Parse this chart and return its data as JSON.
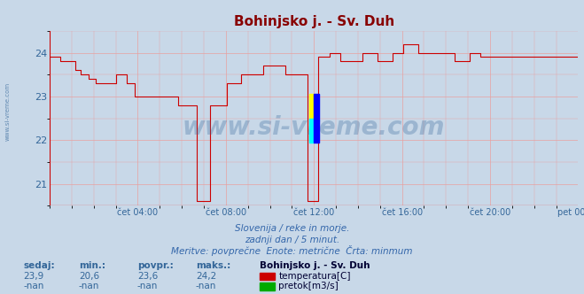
{
  "title": "Bohinjsko j. - Sv. Duh",
  "title_color": "#880000",
  "background_color": "#c8d8e8",
  "plot_bg_color": "#c8d8e8",
  "grid_color": "#e8a0a0",
  "line_color": "#cc0000",
  "ylim": [
    20.5,
    24.5
  ],
  "yticks": [
    21,
    22,
    23,
    24
  ],
  "tick_color": "#336699",
  "subtitle_lines": [
    "Slovenija / reke in morje.",
    "zadnji dan / 5 minut.",
    "Meritve: povprečne  Enote: metrične  Črta: minmum"
  ],
  "footer_labels": [
    "sedaj:",
    "min.:",
    "povpr.:",
    "maks.:"
  ],
  "footer_values_row1": [
    "23,9",
    "20,6",
    "23,6",
    "24,2"
  ],
  "footer_values_row2": [
    "-nan",
    "-nan",
    "-nan",
    "-nan"
  ],
  "legend_title": "Bohinjsko j. - Sv. Duh",
  "legend_items": [
    {
      "label": "temperatura[C]",
      "color": "#cc0000"
    },
    {
      "label": "pretok[m3/s]",
      "color": "#00aa00"
    }
  ],
  "watermark": "www.si-vreme.com",
  "watermark_color": "#336699",
  "watermark_alpha": 0.3,
  "xtick_labels": [
    "čet 04:00",
    "čet 08:00",
    "čet 12:00",
    "čet 16:00",
    "čet 20:00",
    "pet 00:00"
  ],
  "temp_data": [
    23.9,
    23.9,
    23.9,
    23.9,
    23.9,
    23.9,
    23.8,
    23.8,
    23.8,
    23.8,
    23.8,
    23.8,
    23.8,
    23.8,
    23.6,
    23.6,
    23.6,
    23.5,
    23.5,
    23.5,
    23.5,
    23.4,
    23.4,
    23.4,
    23.4,
    23.3,
    23.3,
    23.3,
    23.3,
    23.3,
    23.3,
    23.3,
    23.3,
    23.3,
    23.3,
    23.3,
    23.5,
    23.5,
    23.5,
    23.5,
    23.5,
    23.5,
    23.3,
    23.3,
    23.3,
    23.3,
    23.0,
    23.0,
    23.0,
    23.0,
    23.0,
    23.0,
    23.0,
    23.0,
    23.0,
    23.0,
    23.0,
    23.0,
    23.0,
    23.0,
    23.0,
    23.0,
    23.0,
    23.0,
    23.0,
    23.0,
    23.0,
    23.0,
    23.0,
    23.0,
    22.8,
    22.8,
    22.8,
    22.8,
    22.8,
    22.8,
    22.8,
    22.8,
    22.8,
    22.8,
    20.6,
    20.6,
    20.6,
    20.6,
    20.6,
    20.6,
    20.6,
    22.8,
    22.8,
    22.8,
    22.8,
    22.8,
    22.8,
    22.8,
    22.8,
    22.8,
    23.3,
    23.3,
    23.3,
    23.3,
    23.3,
    23.3,
    23.3,
    23.3,
    23.5,
    23.5,
    23.5,
    23.5,
    23.5,
    23.5,
    23.5,
    23.5,
    23.5,
    23.5,
    23.5,
    23.5,
    23.7,
    23.7,
    23.7,
    23.7,
    23.7,
    23.7,
    23.7,
    23.7,
    23.7,
    23.7,
    23.7,
    23.7,
    23.5,
    23.5,
    23.5,
    23.5,
    23.5,
    23.5,
    23.5,
    23.5,
    23.5,
    23.5,
    23.5,
    23.5,
    20.6,
    20.6,
    20.6,
    20.6,
    20.6,
    20.6,
    23.9,
    23.9,
    23.9,
    23.9,
    23.9,
    23.9,
    24.0,
    24.0,
    24.0,
    24.0,
    24.0,
    24.0,
    23.8,
    23.8,
    23.8,
    23.8,
    23.8,
    23.8,
    23.8,
    23.8,
    23.8,
    23.8,
    23.8,
    23.8,
    24.0,
    24.0,
    24.0,
    24.0,
    24.0,
    24.0,
    24.0,
    24.0,
    23.8,
    23.8,
    23.8,
    23.8,
    23.8,
    23.8,
    23.8,
    23.8,
    24.0,
    24.0,
    24.0,
    24.0,
    24.0,
    24.0,
    24.2,
    24.2,
    24.2,
    24.2,
    24.2,
    24.2,
    24.2,
    24.2,
    24.0,
    24.0,
    24.0,
    24.0,
    24.0,
    24.0,
    24.0,
    24.0,
    24.0,
    24.0,
    24.0,
    24.0,
    24.0,
    24.0,
    24.0,
    24.0,
    24.0,
    24.0,
    24.0,
    24.0,
    23.8,
    23.8,
    23.8,
    23.8,
    23.8,
    23.8,
    23.8,
    23.8,
    24.0,
    24.0,
    24.0,
    24.0,
    24.0,
    24.0,
    23.9,
    23.9,
    23.9,
    23.9,
    23.9,
    23.9,
    23.9,
    23.9,
    23.9,
    23.9,
    23.9,
    23.9,
    23.9,
    23.9,
    23.9,
    23.9,
    23.9,
    23.9,
    23.9,
    23.9,
    23.9,
    23.9,
    23.9,
    23.9,
    23.9,
    23.9,
    23.9,
    23.9,
    23.9,
    23.9,
    23.9,
    23.9,
    23.9,
    23.9,
    23.9,
    23.9,
    23.9,
    23.9,
    23.9,
    23.9,
    23.9,
    23.9,
    23.9,
    23.9,
    23.9,
    23.9,
    23.9,
    23.9,
    23.9,
    23.9,
    23.9,
    23.9,
    23.9,
    23.9
  ]
}
